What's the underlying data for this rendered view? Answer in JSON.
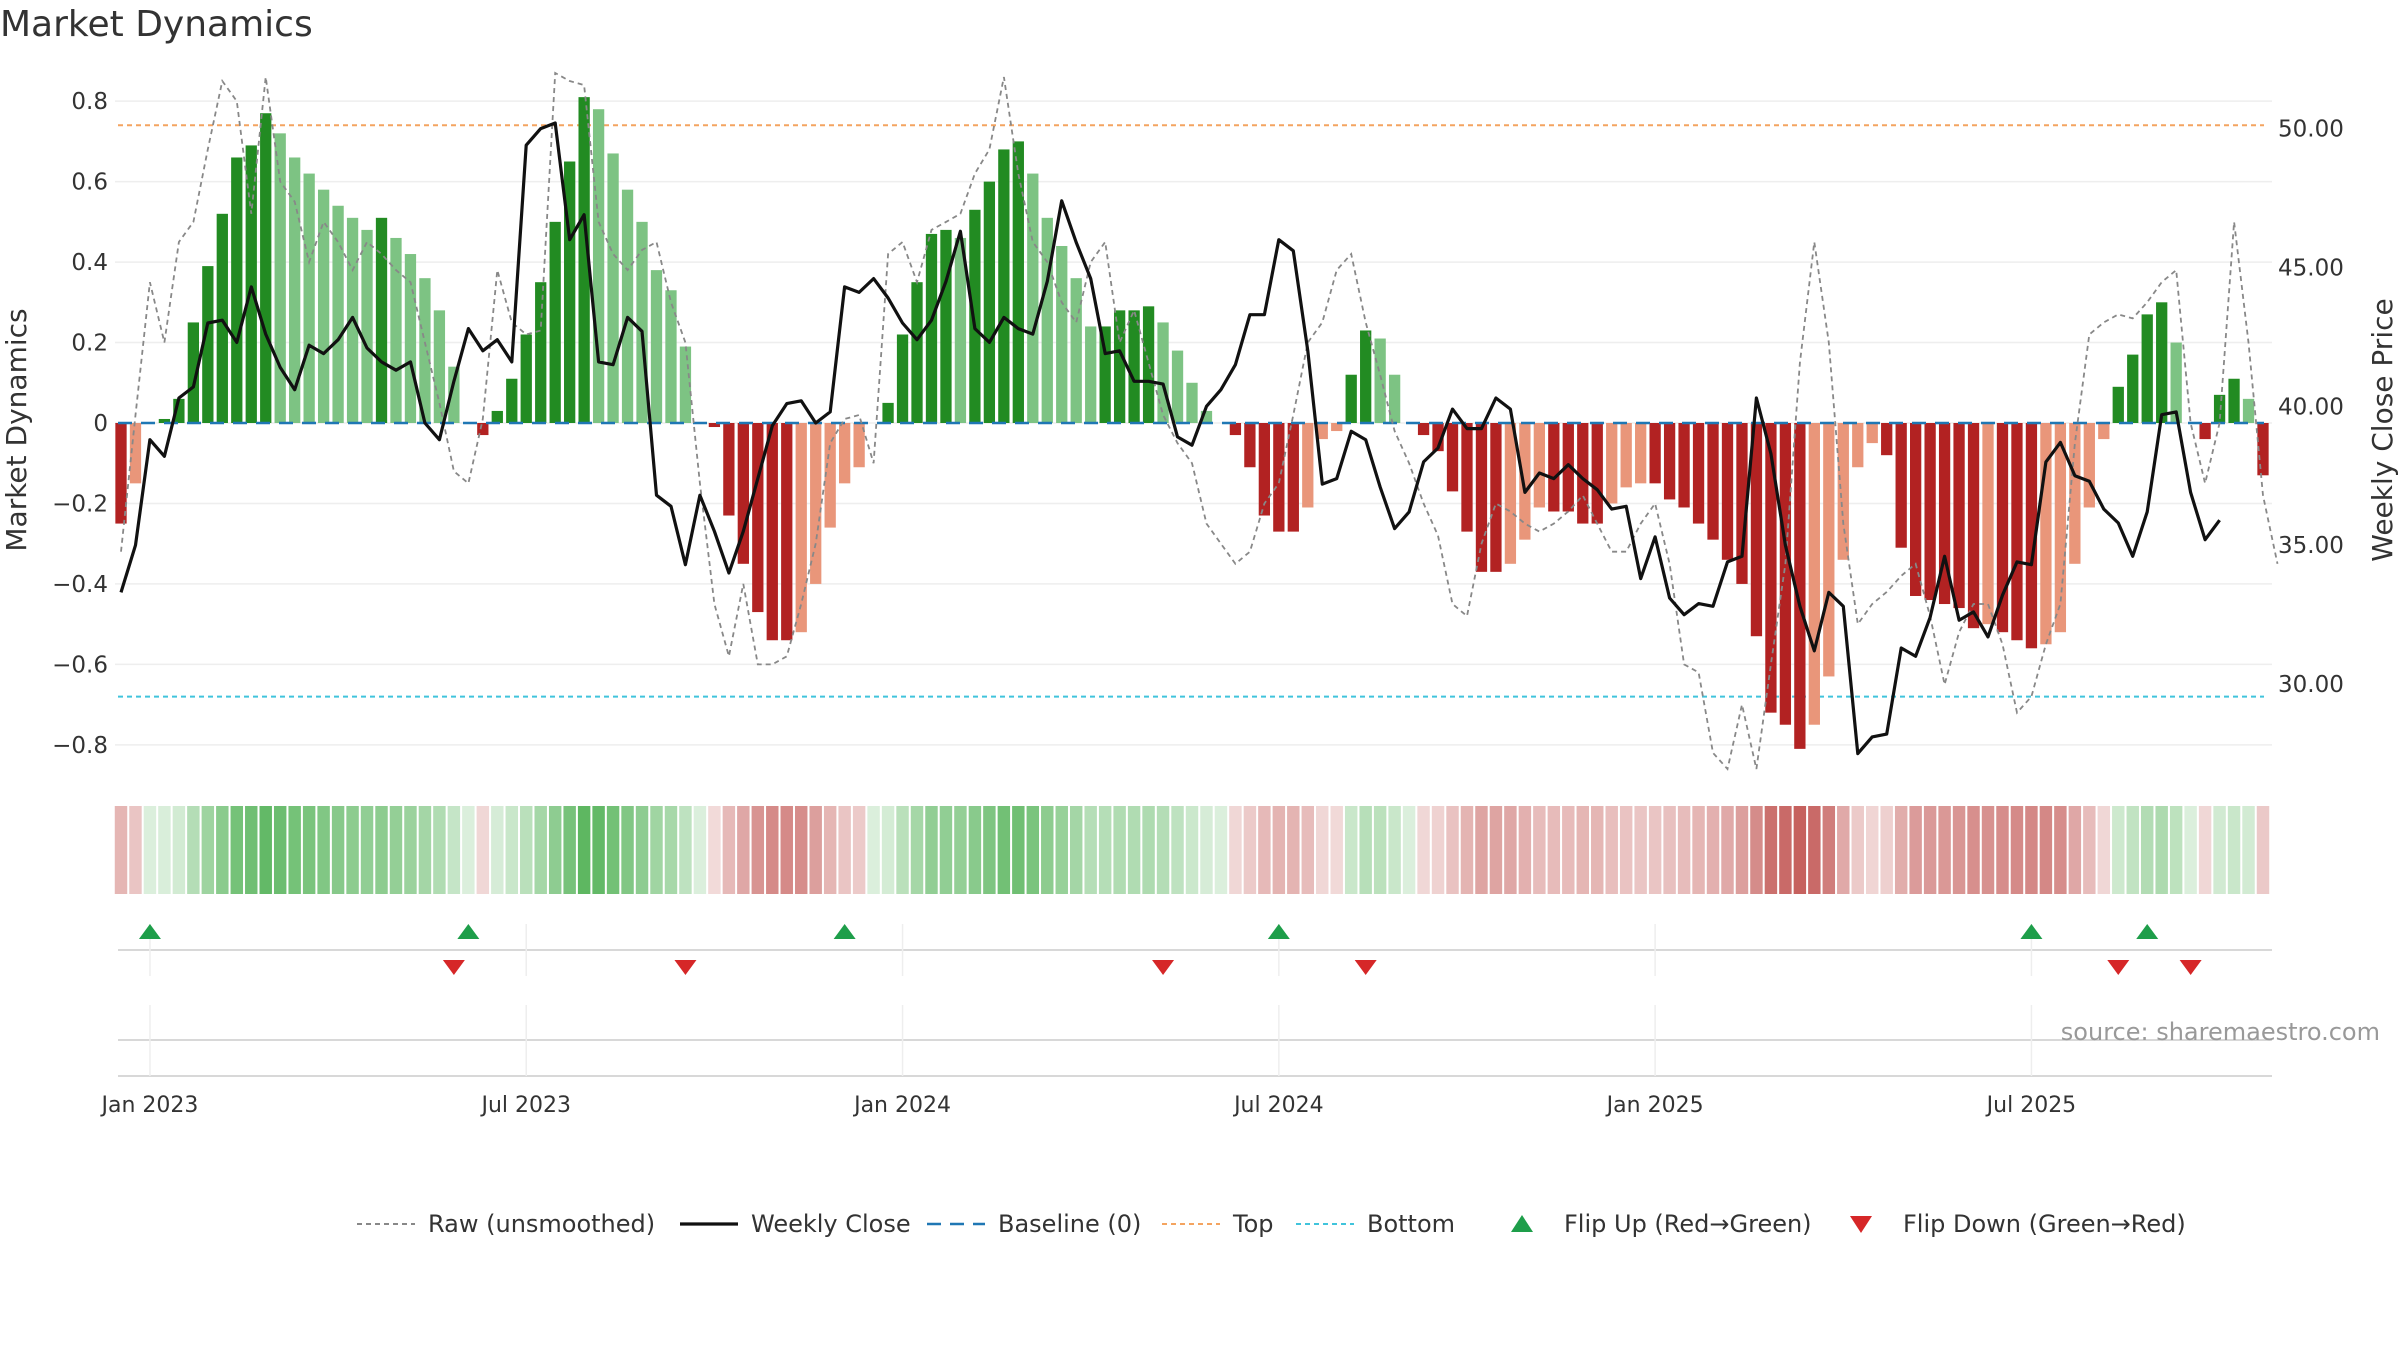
{
  "chart_data": {
    "type": "bar",
    "title": "Market Dynamics",
    "ylabel": "Market Dynamics",
    "y2label": "Weekly Close Price",
    "source": "source: sharemaestro.com",
    "ylim": [
      -0.87,
      0.87
    ],
    "y2lim": [
      26.8,
      52.0
    ],
    "yticks": [
      "0.8",
      "0.6",
      "0.4",
      "0.2",
      "0",
      "−0.2",
      "−0.4",
      "−0.6",
      "−0.8"
    ],
    "yticks_values": [
      0.8,
      0.6,
      0.4,
      0.2,
      0,
      -0.2,
      -0.4,
      -0.6,
      -0.8
    ],
    "y2ticks": [
      "50.00",
      "45.00",
      "40.00",
      "35.00",
      "30.00"
    ],
    "y2ticks_values": [
      50,
      45,
      40,
      35,
      30
    ],
    "xticks": [
      "Jan 2023",
      "Jul 2023",
      "Jan 2024",
      "Jul 2024",
      "Jan 2025",
      "Jul 2025"
    ],
    "xticks_week_index": [
      2,
      28,
      54,
      80,
      106,
      132
    ],
    "top_line": 0.74,
    "bottom_line": -0.68,
    "grid": true,
    "legend_position": "bottom",
    "colors": {
      "strong_green": "#228B22",
      "light_green": "#7DC383",
      "strong_red": "#B22222",
      "light_red": "#E9967A",
      "close_line": "#111111",
      "raw_line": "#888888",
      "baseline": "#1f77b4",
      "top": "#F4A460",
      "bottom": "#40C4DC",
      "flip_up": "#1E9E4A",
      "flip_down": "#D62728",
      "strip_green": "#4CAF50",
      "strip_red": "#C0504D"
    },
    "legend": [
      {
        "label": "Raw (unsmoothed)",
        "kind": "raw"
      },
      {
        "label": "Weekly Close",
        "kind": "close"
      },
      {
        "label": "Baseline (0)",
        "kind": "baseline"
      },
      {
        "label": "Top",
        "kind": "top"
      },
      {
        "label": "Bottom",
        "kind": "bottom"
      },
      {
        "label": "Flip Up (Red→Green)",
        "kind": "up"
      },
      {
        "label": "Flip Down (Green→Red)",
        "kind": "down"
      }
    ],
    "series": [
      {
        "name": "Market Dynamics",
        "values": [
          -0.25,
          -0.15,
          0,
          0.01,
          0.06,
          0.25,
          0.39,
          0.52,
          0.66,
          0.69,
          0.77,
          0.72,
          0.66,
          0.62,
          0.58,
          0.54,
          0.51,
          0.48,
          0.51,
          0.46,
          0.42,
          0.36,
          0.28,
          0.14,
          0,
          -0.03,
          0.03,
          0.11,
          0.22,
          0.35,
          0.5,
          0.65,
          0.81,
          0.78,
          0.67,
          0.58,
          0.5,
          0.38,
          0.33,
          0.19,
          0,
          -0.01,
          -0.23,
          -0.35,
          -0.47,
          -0.54,
          -0.54,
          -0.52,
          -0.4,
          -0.26,
          -0.15,
          -0.11,
          0,
          0.05,
          0.22,
          0.35,
          0.47,
          0.48,
          0.46,
          0.53,
          0.6,
          0.68,
          0.7,
          0.62,
          0.51,
          0.44,
          0.36,
          0.24,
          0.24,
          0.28,
          0.28,
          0.29,
          0.25,
          0.18,
          0.1,
          0.03,
          0,
          -0.03,
          -0.11,
          -0.23,
          -0.27,
          -0.27,
          -0.21,
          -0.04,
          -0.02,
          0.12,
          0.23,
          0.21,
          0.12,
          0,
          -0.03,
          -0.07,
          -0.17,
          -0.27,
          -0.37,
          -0.37,
          -0.35,
          -0.29,
          -0.21,
          -0.22,
          -0.22,
          -0.25,
          -0.25,
          -0.2,
          -0.16,
          -0.15,
          -0.15,
          -0.19,
          -0.21,
          -0.25,
          -0.29,
          -0.34,
          -0.4,
          -0.53,
          -0.72,
          -0.75,
          -0.81,
          -0.75,
          -0.63,
          -0.34,
          -0.11,
          -0.05,
          -0.08,
          -0.31,
          -0.43,
          -0.44,
          -0.45,
          -0.46,
          -0.51,
          -0.5,
          -0.52,
          -0.54,
          -0.56,
          -0.55,
          -0.52,
          -0.35,
          -0.21,
          -0.04,
          0.09,
          0.17,
          0.27,
          0.3,
          0.2,
          0,
          -0.04,
          0.07,
          0.11,
          0.06,
          -0.13
        ]
      },
      {
        "name": "Weekly Close",
        "values": [
          33.3,
          35.0,
          38.8,
          38.2,
          40.3,
          40.7,
          43.0,
          43.1,
          42.3,
          44.3,
          42.6,
          41.4,
          40.6,
          42.2,
          41.9,
          42.4,
          43.2,
          42.1,
          41.6,
          41.3,
          41.6,
          39.4,
          38.8,
          40.9,
          42.8,
          42.0,
          42.4,
          41.6,
          49.4,
          50.0,
          50.2,
          46.0,
          46.9,
          41.6,
          41.5,
          43.2,
          42.7,
          36.8,
          36.4,
          34.3,
          36.8,
          35.5,
          34.0,
          35.5,
          37.4,
          39.3,
          40.1,
          40.2,
          39.4,
          39.8,
          44.3,
          44.1,
          44.6,
          43.9,
          43.0,
          42.4,
          43.1,
          44.5,
          46.3,
          42.8,
          42.3,
          43.2,
          42.8,
          42.6,
          44.5,
          47.4,
          45.9,
          44.6,
          41.9,
          42.0,
          40.9,
          40.9,
          40.8,
          38.9,
          38.6,
          40.0,
          40.6,
          41.5,
          43.3,
          43.3,
          46.0,
          45.6,
          42.0,
          37.2,
          37.4,
          39.1,
          38.8,
          37.1,
          35.6,
          36.2,
          38.0,
          38.5,
          39.9,
          39.2,
          39.2,
          40.3,
          39.9,
          36.9,
          37.6,
          37.4,
          37.9,
          37.4,
          37.0,
          36.3,
          36.4,
          33.8,
          35.3,
          33.1,
          32.5,
          32.9,
          32.8,
          34.4,
          34.6,
          40.3,
          38.3,
          35.0,
          32.8,
          31.2,
          33.3,
          32.8,
          27.5,
          28.1,
          28.2,
          31.3,
          31.0,
          32.4,
          34.6,
          32.3,
          32.6,
          31.7,
          33.2,
          34.4,
          34.3,
          38.0,
          38.7,
          37.5,
          37.3,
          36.3,
          35.8,
          34.6,
          36.2,
          39.7,
          39.8,
          36.9,
          35.2,
          35.9
        ]
      },
      {
        "name": "Raw (unsmoothed)",
        "values": [
          -0.32,
          0.02,
          0.35,
          0.2,
          0.45,
          0.5,
          0.68,
          0.85,
          0.8,
          0.52,
          0.86,
          0.6,
          0.55,
          0.4,
          0.5,
          0.45,
          0.38,
          0.45,
          0.42,
          0.38,
          0.35,
          0.2,
          0.05,
          -0.12,
          -0.15,
          0.01,
          0.38,
          0.25,
          0.22,
          0.23,
          0.87,
          0.85,
          0.84,
          0.5,
          0.42,
          0.38,
          0.43,
          0.45,
          0.3,
          0.2,
          -0.15,
          -0.45,
          -0.58,
          -0.4,
          -0.6,
          -0.6,
          -0.58,
          -0.45,
          -0.3,
          -0.05,
          0.01,
          0.02,
          -0.1,
          0.42,
          0.45,
          0.35,
          0.48,
          0.5,
          0.52,
          0.62,
          0.68,
          0.86,
          0.62,
          0.45,
          0.4,
          0.3,
          0.25,
          0.4,
          0.45,
          0.2,
          0.28,
          0.15,
          0.02,
          -0.05,
          -0.1,
          -0.25,
          -0.3,
          -0.35,
          -0.32,
          -0.2,
          -0.15,
          0.02,
          0.2,
          0.25,
          0.38,
          0.42,
          0.25,
          0.12,
          -0.02,
          -0.1,
          -0.2,
          -0.28,
          -0.45,
          -0.48,
          -0.3,
          -0.2,
          -0.22,
          -0.25,
          -0.27,
          -0.25,
          -0.22,
          -0.18,
          -0.25,
          -0.32,
          -0.32,
          -0.25,
          -0.2,
          -0.35,
          -0.6,
          -0.62,
          -0.82,
          -0.86,
          -0.7,
          -0.86,
          -0.6,
          -0.35,
          0.15,
          0.45,
          0.2,
          -0.25,
          -0.5,
          -0.45,
          -0.42,
          -0.38,
          -0.35,
          -0.48,
          -0.65,
          -0.52,
          -0.45,
          -0.45,
          -0.55,
          -0.72,
          -0.68,
          -0.55,
          -0.45,
          -0.05,
          0.22,
          0.25,
          0.27,
          0.26,
          0.3,
          0.35,
          0.38,
          0.0,
          -0.15,
          0.0,
          0.5,
          0.2,
          -0.18,
          -0.35
        ]
      }
    ],
    "flip_up_weeks": [
      2,
      24,
      50,
      80,
      132,
      140
    ],
    "flip_down_weeks": [
      23,
      39,
      72,
      86,
      138,
      143
    ]
  }
}
